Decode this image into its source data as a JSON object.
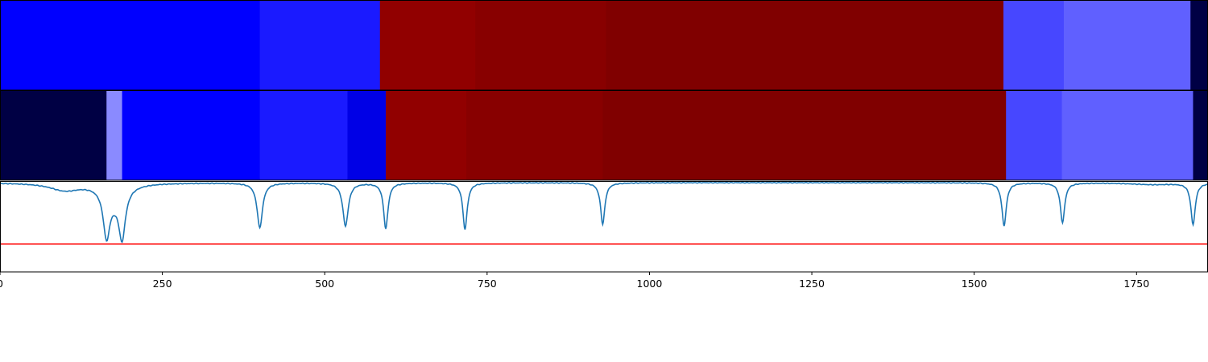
{
  "chart_data": {
    "type": "heatmap",
    "xlim": [
      0,
      1860
    ],
    "x_ticks": [
      0,
      250,
      500,
      750,
      1000,
      1250,
      1500,
      1750
    ],
    "x_tick_labels": [
      "0",
      "250",
      "500",
      "750",
      "1000",
      "1250",
      "1500",
      "1750"
    ],
    "grid": false,
    "legend": "none",
    "rows": [
      {
        "segments": [
          {
            "start": 0,
            "end": 400,
            "color": "#0000ff"
          },
          {
            "start": 400,
            "end": 585,
            "color": "#1a1aff"
          },
          {
            "start": 585,
            "end": 732,
            "color": "#910000"
          },
          {
            "start": 732,
            "end": 933,
            "color": "#880000"
          },
          {
            "start": 933,
            "end": 1545,
            "color": "#800000"
          },
          {
            "start": 1545,
            "end": 1638,
            "color": "#4747ff"
          },
          {
            "start": 1638,
            "end": 1833,
            "color": "#6060ff"
          },
          {
            "start": 1833,
            "end": 1860,
            "color": "#000044"
          }
        ]
      },
      {
        "segments": [
          {
            "start": 0,
            "end": 164,
            "color": "#000044"
          },
          {
            "start": 164,
            "end": 188,
            "color": "#8a8aff"
          },
          {
            "start": 188,
            "end": 400,
            "color": "#0000ff"
          },
          {
            "start": 400,
            "end": 535,
            "color": "#1a1aff"
          },
          {
            "start": 535,
            "end": 594,
            "color": "#0000e6"
          },
          {
            "start": 594,
            "end": 718,
            "color": "#910000"
          },
          {
            "start": 718,
            "end": 928,
            "color": "#880000"
          },
          {
            "start": 928,
            "end": 1549,
            "color": "#800000"
          },
          {
            "start": 1549,
            "end": 1635,
            "color": "#4747ff"
          },
          {
            "start": 1635,
            "end": 1837,
            "color": "#6060ff"
          },
          {
            "start": 1837,
            "end": 1860,
            "color": "#000044"
          }
        ]
      }
    ],
    "signal": {
      "color": "#1f77b4",
      "ylim": [
        0,
        1
      ],
      "baseline": 0.99,
      "threshold": 0.31,
      "threshold_color": "#ff0000",
      "dips": [
        {
          "x": 100,
          "depth": 0.08,
          "width": 28
        },
        {
          "x": 164,
          "depth": 0.5,
          "width": 6
        },
        {
          "x": 188,
          "depth": 0.52,
          "width": 6
        },
        {
          "x": 176,
          "depth": 0.15,
          "width": 18
        },
        {
          "x": 400,
          "depth": 0.5,
          "width": 5
        },
        {
          "x": 532,
          "depth": 0.48,
          "width": 5
        },
        {
          "x": 594,
          "depth": 0.51,
          "width": 4
        },
        {
          "x": 716,
          "depth": 0.52,
          "width": 4
        },
        {
          "x": 928,
          "depth": 0.46,
          "width": 4
        },
        {
          "x": 1546,
          "depth": 0.48,
          "width": 4
        },
        {
          "x": 1636,
          "depth": 0.44,
          "width": 4
        },
        {
          "x": 1775,
          "depth": 0.02,
          "width": 40
        },
        {
          "x": 1837,
          "depth": 0.46,
          "width": 4
        }
      ]
    }
  }
}
